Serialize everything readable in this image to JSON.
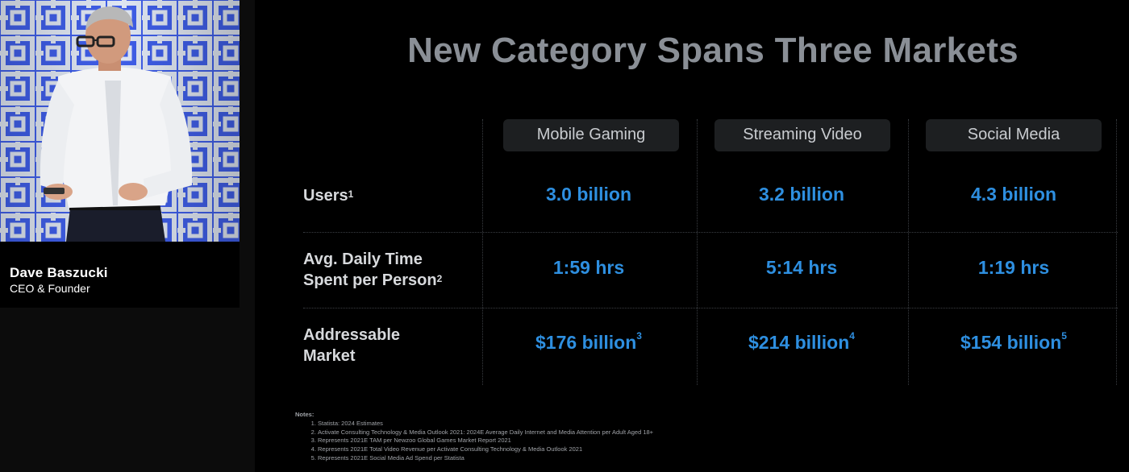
{
  "speaker": {
    "name": "Dave Baszucki",
    "role": "CEO & Founder"
  },
  "slide": {
    "title": "New Category Spans Three Markets",
    "columns": [
      "Mobile Gaming",
      "Streaming Video",
      "Social Media"
    ],
    "rows": [
      {
        "label_lines": [
          "Users"
        ],
        "sup": "1",
        "values": [
          {
            "text": "3.0 billion",
            "sup": ""
          },
          {
            "text": "3.2 billion",
            "sup": ""
          },
          {
            "text": "4.3 billion",
            "sup": ""
          }
        ]
      },
      {
        "label_lines": [
          "Avg. Daily Time",
          "Spent per Person"
        ],
        "sup": "2",
        "values": [
          {
            "text": "1:59 hrs",
            "sup": ""
          },
          {
            "text": "5:14 hrs",
            "sup": ""
          },
          {
            "text": "1:19 hrs",
            "sup": ""
          }
        ]
      },
      {
        "label_lines": [
          "Addressable",
          "Market"
        ],
        "sup": "",
        "values": [
          {
            "text": "$176 billion",
            "sup": "3"
          },
          {
            "text": "$214 billion",
            "sup": "4"
          },
          {
            "text": "$154 billion",
            "sup": "5"
          }
        ]
      }
    ],
    "notes_title": "Notes:",
    "notes": [
      "Statista: 2024 Estimates",
      "Activate Consulting Technology & Media Outlook 2021: 2024E Average Daily Internet and Media Attention per Adult Aged 18+",
      "Represents 2021E TAM per Newzoo Global Games Market Report 2021",
      "Represents 2021E Total Video Revenue per Activate Consulting Technology & Media Outlook 2021",
      "Represents 2021E Social Media Ad Spend per Statista"
    ]
  },
  "colors": {
    "accent_value": "#2e8fe0",
    "title": "#8a8f96",
    "header_bg": "#1d1f21"
  }
}
